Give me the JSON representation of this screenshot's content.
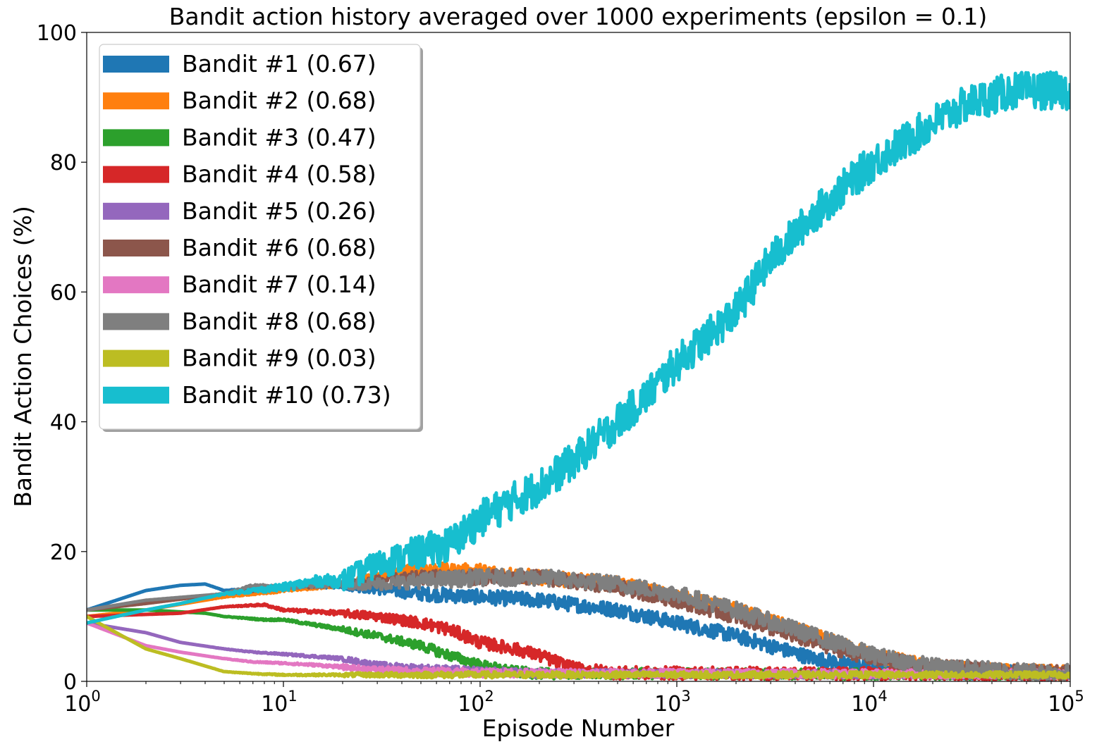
{
  "chart_data": {
    "type": "line",
    "title": "Bandit action history averaged over 1000 experiments (epsilon = 0.1)",
    "xlabel": "Episode Number",
    "ylabel": "Bandit Action Choices (%)",
    "xscale": "log",
    "xlim": [
      1,
      100000
    ],
    "ylim": [
      0,
      100
    ],
    "x_ticks": [
      {
        "value": 1,
        "base": "10",
        "exp": "0"
      },
      {
        "value": 10,
        "base": "10",
        "exp": "1"
      },
      {
        "value": 100,
        "base": "10",
        "exp": "2"
      },
      {
        "value": 1000,
        "base": "10",
        "exp": "3"
      },
      {
        "value": 10000,
        "base": "10",
        "exp": "4"
      },
      {
        "value": 100000,
        "base": "10",
        "exp": "5"
      }
    ],
    "y_ticks": [
      "0",
      "20",
      "40",
      "60",
      "80",
      "100"
    ],
    "grid": false,
    "legend_position": "top-left",
    "series": [
      {
        "name": "Bandit #1 (0.67)",
        "color": "#1f77b4",
        "noise": 0.7,
        "points": [
          [
            1,
            11
          ],
          [
            2,
            14
          ],
          [
            3,
            14.8
          ],
          [
            4,
            15
          ],
          [
            5,
            14
          ],
          [
            10,
            14.5
          ],
          [
            20,
            14.8
          ],
          [
            50,
            13.5
          ],
          [
            100,
            13
          ],
          [
            200,
            12.5
          ],
          [
            500,
            11
          ],
          [
            1000,
            9
          ],
          [
            2000,
            7
          ],
          [
            5000,
            3.5
          ],
          [
            10000,
            2
          ],
          [
            20000,
            1.5
          ],
          [
            100000,
            1.3
          ]
        ]
      },
      {
        "name": "Bandit #2 (0.68)",
        "color": "#ff7f0e",
        "noise": 0.7,
        "points": [
          [
            1,
            10
          ],
          [
            2,
            11
          ],
          [
            5,
            13
          ],
          [
            10,
            14
          ],
          [
            20,
            15
          ],
          [
            30,
            16
          ],
          [
            50,
            17.5
          ],
          [
            70,
            17
          ],
          [
            100,
            17
          ],
          [
            200,
            16
          ],
          [
            500,
            15
          ],
          [
            1000,
            13
          ],
          [
            2000,
            11
          ],
          [
            5000,
            7
          ],
          [
            10000,
            4
          ],
          [
            20000,
            2.2
          ],
          [
            50000,
            1.5
          ],
          [
            100000,
            1.3
          ]
        ]
      },
      {
        "name": "Bandit #3 (0.47)",
        "color": "#2ca02c",
        "noise": 0.5,
        "points": [
          [
            1,
            11
          ],
          [
            2,
            11
          ],
          [
            4,
            10.5
          ],
          [
            5,
            10
          ],
          [
            8,
            9.5
          ],
          [
            10,
            9.5
          ],
          [
            20,
            8
          ],
          [
            30,
            7
          ],
          [
            50,
            5.5
          ],
          [
            70,
            4
          ],
          [
            100,
            2.5
          ],
          [
            150,
            1.5
          ],
          [
            200,
            1.2
          ],
          [
            100000,
            1.1
          ]
        ]
      },
      {
        "name": "Bandit #4 (0.58)",
        "color": "#d62728",
        "noise": 0.6,
        "points": [
          [
            1,
            10
          ],
          [
            3,
            10.5
          ],
          [
            5,
            11.5
          ],
          [
            8,
            11.8
          ],
          [
            10,
            11
          ],
          [
            20,
            10.5
          ],
          [
            30,
            10
          ],
          [
            50,
            9
          ],
          [
            70,
            8
          ],
          [
            100,
            6
          ],
          [
            150,
            5
          ],
          [
            200,
            4
          ],
          [
            300,
            2
          ],
          [
            500,
            1.3
          ],
          [
            100000,
            1.1
          ]
        ]
      },
      {
        "name": "Bandit #5 (0.26)",
        "color": "#9467bd",
        "noise": 0.4,
        "points": [
          [
            1,
            9
          ],
          [
            2,
            7.5
          ],
          [
            3,
            6
          ],
          [
            5,
            5
          ],
          [
            7,
            4.5
          ],
          [
            10,
            4.2
          ],
          [
            15,
            3.8
          ],
          [
            20,
            3.5
          ],
          [
            30,
            2.5
          ],
          [
            50,
            2
          ],
          [
            100,
            1.5
          ],
          [
            200,
            1.2
          ],
          [
            100000,
            1.1
          ]
        ]
      },
      {
        "name": "Bandit #6 (0.68)",
        "color": "#8c564b",
        "noise": 0.7,
        "points": [
          [
            1,
            11
          ],
          [
            2,
            12
          ],
          [
            5,
            13.5
          ],
          [
            10,
            14.5
          ],
          [
            20,
            15
          ],
          [
            30,
            15.5
          ],
          [
            50,
            16
          ],
          [
            100,
            16
          ],
          [
            200,
            16
          ],
          [
            500,
            14.5
          ],
          [
            1000,
            12.5
          ],
          [
            2000,
            10
          ],
          [
            5000,
            6
          ],
          [
            10000,
            3.5
          ],
          [
            20000,
            2.2
          ],
          [
            50000,
            1.5
          ],
          [
            100000,
            1.3
          ]
        ]
      },
      {
        "name": "Bandit #7 (0.14)",
        "color": "#e377c2",
        "noise": 0.4,
        "points": [
          [
            1,
            9
          ],
          [
            2,
            5.5
          ],
          [
            3,
            4.5
          ],
          [
            5,
            3.5
          ],
          [
            7,
            3
          ],
          [
            10,
            2.8
          ],
          [
            15,
            2.5
          ],
          [
            20,
            2.2
          ],
          [
            30,
            1.8
          ],
          [
            50,
            1.5
          ],
          [
            100,
            1.3
          ],
          [
            100000,
            1.1
          ]
        ]
      },
      {
        "name": "Bandit #8 (0.68)",
        "color": "#7f7f7f",
        "noise": 0.8,
        "points": [
          [
            1,
            11
          ],
          [
            2,
            12.5
          ],
          [
            5,
            13.5
          ],
          [
            7,
            14.8
          ],
          [
            10,
            14.5
          ],
          [
            20,
            15
          ],
          [
            30,
            15
          ],
          [
            50,
            15.5
          ],
          [
            100,
            16
          ],
          [
            200,
            16
          ],
          [
            500,
            15
          ],
          [
            1000,
            13.5
          ],
          [
            2000,
            11
          ],
          [
            5000,
            7
          ],
          [
            10000,
            4
          ],
          [
            20000,
            2.3
          ],
          [
            50000,
            1.6
          ],
          [
            100000,
            1.4
          ]
        ]
      },
      {
        "name": "Bandit #9 (0.03)",
        "color": "#bcbd22",
        "noise": 0.3,
        "points": [
          [
            1,
            10
          ],
          [
            2,
            5
          ],
          [
            3,
            3.5
          ],
          [
            5,
            1.5
          ],
          [
            7,
            1.2
          ],
          [
            10,
            1
          ],
          [
            20,
            1
          ],
          [
            100,
            1
          ],
          [
            100000,
            1
          ]
        ]
      },
      {
        "name": "Bandit #10 (0.73)",
        "color": "#17becf",
        "noise": 1.8,
        "points": [
          [
            1,
            9
          ],
          [
            2,
            11
          ],
          [
            3,
            12
          ],
          [
            5,
            13.5
          ],
          [
            7,
            14
          ],
          [
            10,
            14.5
          ],
          [
            15,
            15.5
          ],
          [
            20,
            15.5
          ],
          [
            30,
            18
          ],
          [
            50,
            20
          ],
          [
            70,
            21
          ],
          [
            100,
            25
          ],
          [
            150,
            28
          ],
          [
            200,
            30
          ],
          [
            300,
            34
          ],
          [
            500,
            40
          ],
          [
            700,
            44
          ],
          [
            1000,
            49
          ],
          [
            2000,
            57
          ],
          [
            3000,
            65
          ],
          [
            5000,
            72
          ],
          [
            7000,
            76
          ],
          [
            10000,
            80
          ],
          [
            20000,
            86
          ],
          [
            30000,
            89
          ],
          [
            50000,
            91
          ],
          [
            100000,
            91
          ]
        ]
      }
    ]
  }
}
